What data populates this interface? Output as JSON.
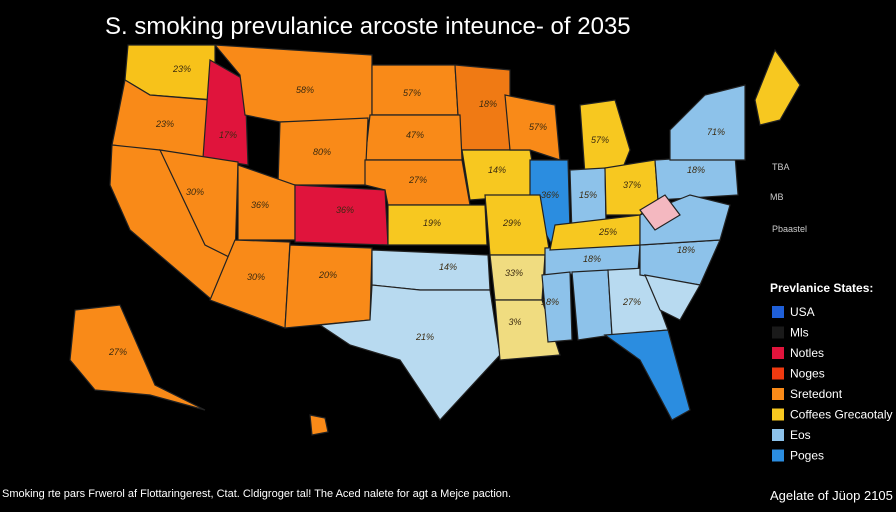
{
  "header": {
    "title": "S. smoking prevulanice arcoste inteunce- of 2035"
  },
  "map": {
    "labels": [
      "23%",
      "23%",
      "17%",
      "58%",
      "57%",
      "18%",
      "47%",
      "80%",
      "27%",
      "14%",
      "57%",
      "57%",
      "36%",
      "15%",
      "37%",
      "18%",
      "71%",
      "30%",
      "36%",
      "36%",
      "19%",
      "29%",
      "30%",
      "20%",
      "14%",
      "21%",
      "33%",
      "3%",
      "18%",
      "18%",
      "27%",
      "18%",
      "25%",
      "27%"
    ]
  },
  "annotations": [
    "TBA",
    "MB",
    "Pbaastel"
  ],
  "legend": {
    "title": "Prevlanice States:",
    "items": [
      {
        "label": "USA",
        "color": "#1f5fd8"
      },
      {
        "label": "Mls",
        "color": "#1a1a1a"
      },
      {
        "label": "Notles",
        "color": "#e0143c"
      },
      {
        "label": "Noges",
        "color": "#f03a10"
      },
      {
        "label": "Sretedont",
        "color": "#f98a18"
      },
      {
        "label": "Coffees Grecaotaly",
        "color": "#f7c820"
      },
      {
        "label": "Eos",
        "color": "#8dc2ea"
      },
      {
        "label": "Poges",
        "color": "#2b8de0"
      }
    ]
  },
  "footer": {
    "note": "Smoking rte pars Frwerol af Flottaringerest, Ctat. Cldigroger tal! The Aced nalete for agt a Mejce paction.",
    "credit": "Agelate of Jüop 2105"
  }
}
